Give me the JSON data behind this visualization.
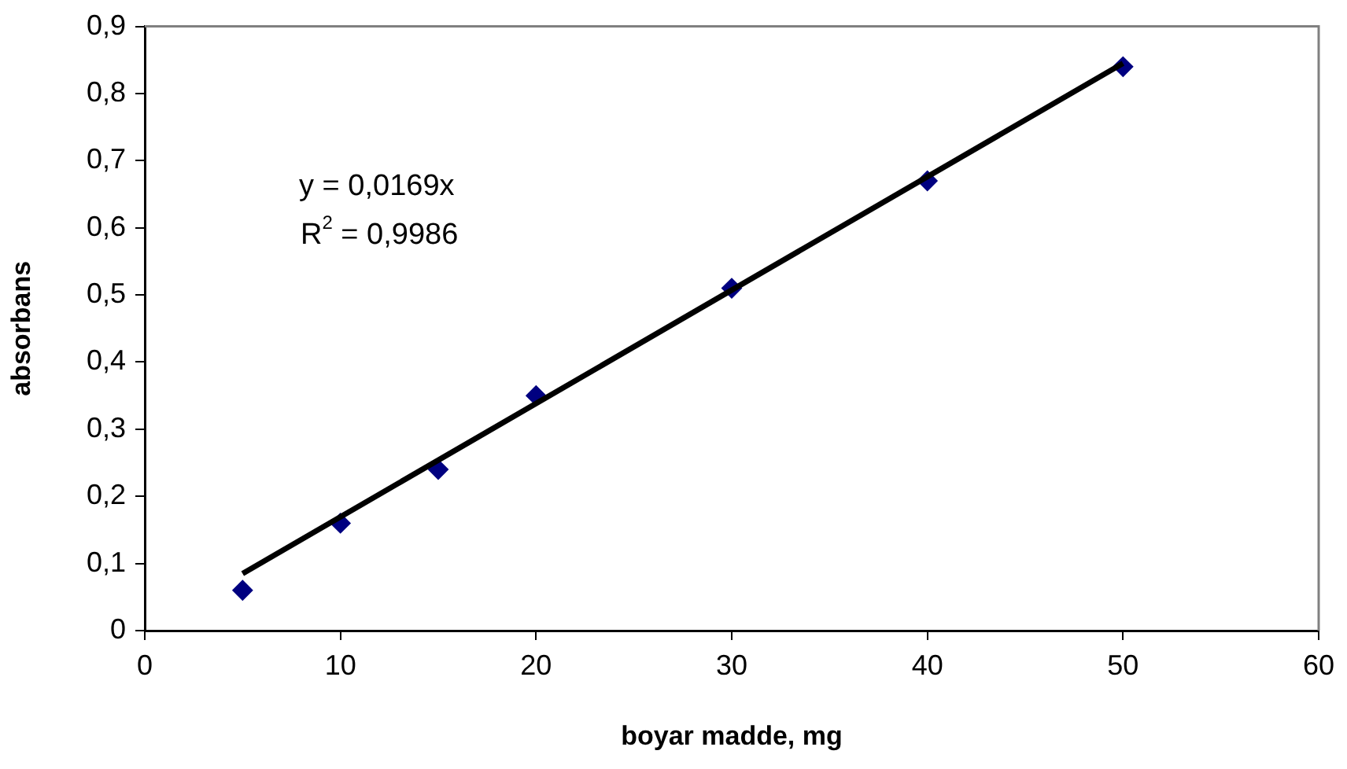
{
  "chart_data": {
    "type": "scatter",
    "xlabel": "boyar madde, mg",
    "ylabel": "absorbans",
    "x": [
      5,
      10,
      15,
      20,
      30,
      40,
      50
    ],
    "series": [
      {
        "color": "#000080",
        "marker": "diamond",
        "values": [
          0.06,
          0.16,
          0.24,
          0.35,
          0.51,
          0.67,
          0.84
        ]
      },
      {
        "type": "line",
        "color": "#000000",
        "marker": "none",
        "x": [
          5,
          50
        ],
        "values": [
          0.085,
          0.845
        ]
      }
    ],
    "xlim": [
      0,
      60
    ],
    "xticks": [
      0,
      10,
      20,
      30,
      40,
      50,
      60
    ],
    "ylim": [
      0,
      0.9
    ],
    "yticks": [
      0,
      {
        "value": 0.1,
        "label": "0,1"
      },
      {
        "value": 0.2,
        "label": "0,2"
      },
      {
        "value": 0.3,
        "label": "0,3"
      },
      {
        "value": 0.4,
        "label": "0,4"
      },
      {
        "value": 0.5,
        "label": "0,5"
      },
      {
        "value": 0.6,
        "label": "0,6"
      },
      {
        "value": 0.7,
        "label": "0,7"
      },
      {
        "value": 0.8,
        "label": "0,8"
      },
      {
        "value": 0.9,
        "label": "0,9"
      }
    ],
    "grid": false,
    "legend": false,
    "annotations": [
      "y = 0,0169x",
      "R$^{2}$ = 0,9986"
    ]
  }
}
